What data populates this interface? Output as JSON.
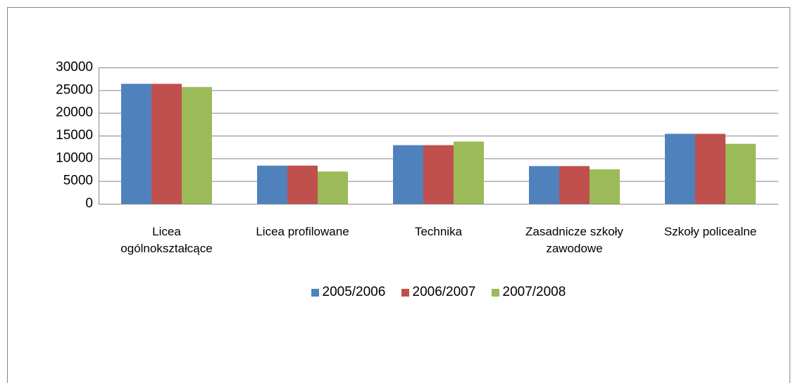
{
  "chart_data": {
    "type": "bar",
    "categories": [
      "Licea ogólnokształcące",
      "Licea profilowane",
      "Technika",
      "Zasadnicze szkoły zawodowe",
      "Szkoły policealne"
    ],
    "series": [
      {
        "name": "2005/2006",
        "color": "#4f81bd",
        "values": [
          26400,
          8400,
          12900,
          8300,
          15400
        ]
      },
      {
        "name": "2006/2007",
        "color": "#c0504d",
        "values": [
          26400,
          8400,
          12900,
          8300,
          15400
        ]
      },
      {
        "name": "2007/2008",
        "color": "#9bbb59",
        "values": [
          25700,
          7100,
          13700,
          7600,
          13200
        ]
      }
    ],
    "ylim": [
      0,
      30000
    ],
    "yticks": [
      0,
      5000,
      10000,
      15000,
      20000,
      25000,
      30000
    ],
    "grid": true,
    "legend": "bottom"
  }
}
